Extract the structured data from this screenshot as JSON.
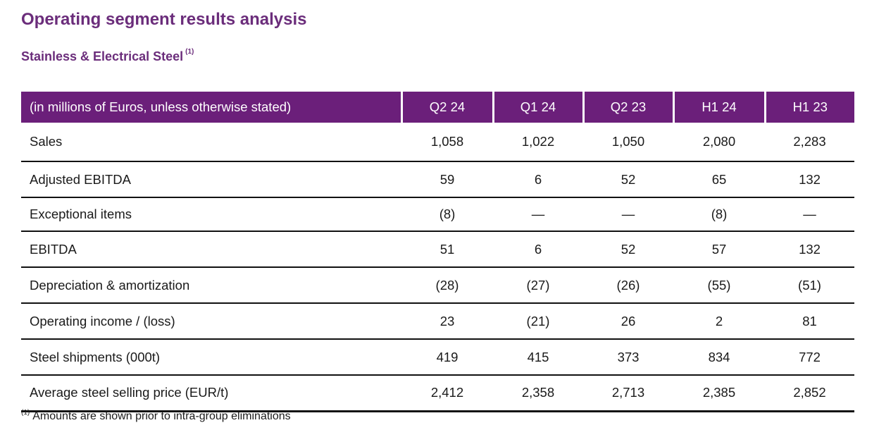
{
  "title": "Operating segment results analysis",
  "subtitle": {
    "text": "Stainless & Electrical Steel",
    "note_marker": "(1)"
  },
  "table": {
    "header_label": "(in millions of Euros, unless otherwise stated)",
    "columns": [
      "Q2 24",
      "Q1 24",
      "Q2 23",
      "H1 24",
      "H1 23"
    ],
    "rows": [
      {
        "label": "Sales",
        "values": [
          "1,058",
          "1,022",
          "1,050",
          "2,080",
          "2,283"
        ]
      },
      {
        "label": "Adjusted EBITDA",
        "values": [
          "59",
          "6",
          "52",
          "65",
          "132"
        ]
      },
      {
        "label": "Exceptional items",
        "values": [
          "(8)",
          "—",
          "—",
          "(8)",
          "—"
        ]
      },
      {
        "label": "EBITDA",
        "values": [
          "51",
          "6",
          "52",
          "57",
          "132"
        ]
      },
      {
        "label": "Depreciation & amortization",
        "values": [
          "(28)",
          "(27)",
          "(26)",
          "(55)",
          "(51)"
        ]
      },
      {
        "label": "Operating income / (loss)",
        "values": [
          "23",
          "(21)",
          "26",
          "2",
          "81"
        ]
      },
      {
        "label": "Steel shipments (000t)",
        "values": [
          "419",
          "415",
          "373",
          "834",
          "772"
        ]
      },
      {
        "label": "Average steel selling price (EUR/t)",
        "values": [
          "2,412",
          "2,358",
          "2,713",
          "2,385",
          "2,852"
        ]
      }
    ]
  },
  "footnote": {
    "marker": "(1)",
    "text": "Amounts are shown prior to intra-group eliminations"
  },
  "colors": {
    "brand_purple": "#6b1f7a",
    "title_purple": "#6b2d7b"
  }
}
